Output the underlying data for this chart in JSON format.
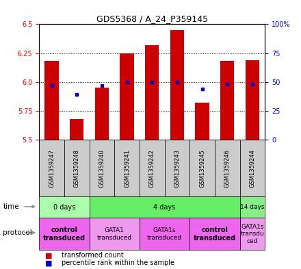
{
  "title": "GDS5368 / A_24_P359145",
  "samples": [
    "GSM1359247",
    "GSM1359248",
    "GSM1359240",
    "GSM1359241",
    "GSM1359242",
    "GSM1359243",
    "GSM1359245",
    "GSM1359246",
    "GSM1359244"
  ],
  "bar_values": [
    6.18,
    5.68,
    5.95,
    6.25,
    6.32,
    6.45,
    5.82,
    6.18,
    6.19
  ],
  "bar_bottom": 5.5,
  "percentile_values": [
    47,
    39,
    47,
    50,
    50,
    50,
    44,
    48,
    48
  ],
  "ylim": [
    5.5,
    6.5
  ],
  "yticks_left": [
    5.5,
    5.75,
    6.0,
    6.25,
    6.5
  ],
  "yticks_right": [
    0,
    25,
    50,
    75,
    100
  ],
  "bar_color": "#cc0000",
  "dot_color": "#0000cc",
  "bar_width": 0.55,
  "time_groups": [
    {
      "label": "0 days",
      "start": 0,
      "end": 2,
      "color": "#aaffaa"
    },
    {
      "label": "4 days",
      "start": 2,
      "end": 8,
      "color": "#66ee66"
    },
    {
      "label": "14 days",
      "start": 8,
      "end": 9,
      "color": "#88ee88"
    }
  ],
  "protocol_groups": [
    {
      "label": "control\ntransduced",
      "start": 0,
      "end": 2,
      "color": "#ee66ee",
      "bold": true
    },
    {
      "label": "GATA1\ntransduced",
      "start": 2,
      "end": 4,
      "color": "#ee99ee",
      "bold": false
    },
    {
      "label": "GATA1s\ntransduced",
      "start": 4,
      "end": 6,
      "color": "#ee66ee",
      "bold": false
    },
    {
      "label": "control\ntransduced",
      "start": 6,
      "end": 8,
      "color": "#ee66ee",
      "bold": true
    },
    {
      "label": "GATA1s\ntransdu\nced",
      "start": 8,
      "end": 9,
      "color": "#ee99ee",
      "bold": false
    }
  ],
  "sample_bg_color": "#cccccc",
  "grid_linestyle": ":",
  "left_tick_color": "red",
  "right_tick_color": "blue"
}
